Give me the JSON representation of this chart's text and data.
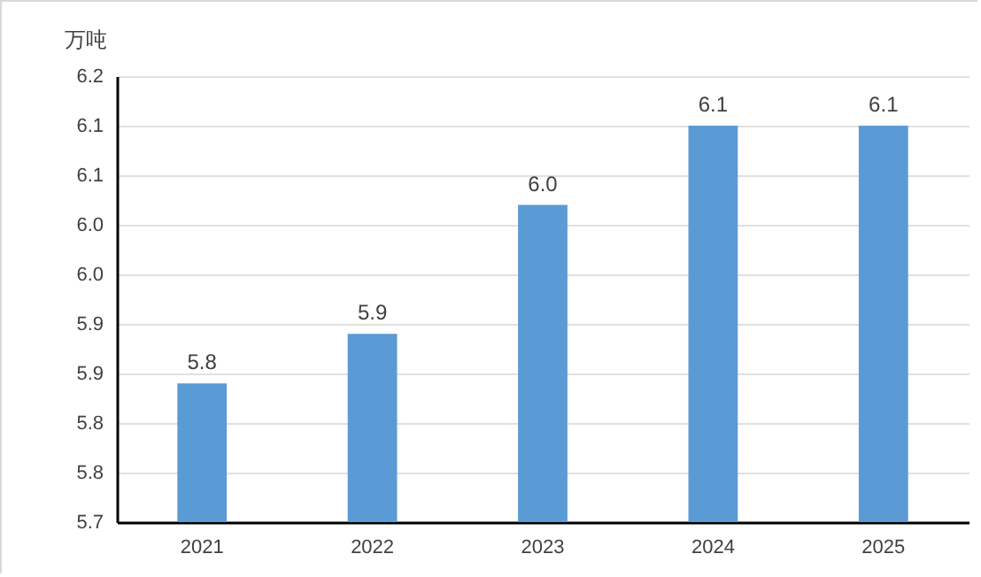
{
  "chart_data": {
    "type": "bar",
    "ylabel": "万吨",
    "categories": [
      "2021",
      "2022",
      "2023",
      "2024",
      "2025"
    ],
    "values": [
      5.84,
      5.89,
      6.02,
      6.1,
      6.1
    ],
    "value_labels": [
      "5.8",
      "5.9",
      "6.0",
      "6.1",
      "6.1"
    ],
    "color": "#5b9bd5",
    "ylim": [
      5.7,
      6.15
    ],
    "yticks": [
      {
        "value": 5.7,
        "label": "5.7"
      },
      {
        "value": 5.75,
        "label": "5.8"
      },
      {
        "value": 5.8,
        "label": "5.8"
      },
      {
        "value": 5.85,
        "label": "5.9"
      },
      {
        "value": 5.9,
        "label": "5.9"
      },
      {
        "value": 5.95,
        "label": "6.0"
      },
      {
        "value": 6.0,
        "label": "6.0"
      },
      {
        "value": 6.05,
        "label": "6.1"
      },
      {
        "value": 6.1,
        "label": "6.1"
      },
      {
        "value": 6.15,
        "label": "6.2"
      }
    ],
    "grid": "y"
  }
}
